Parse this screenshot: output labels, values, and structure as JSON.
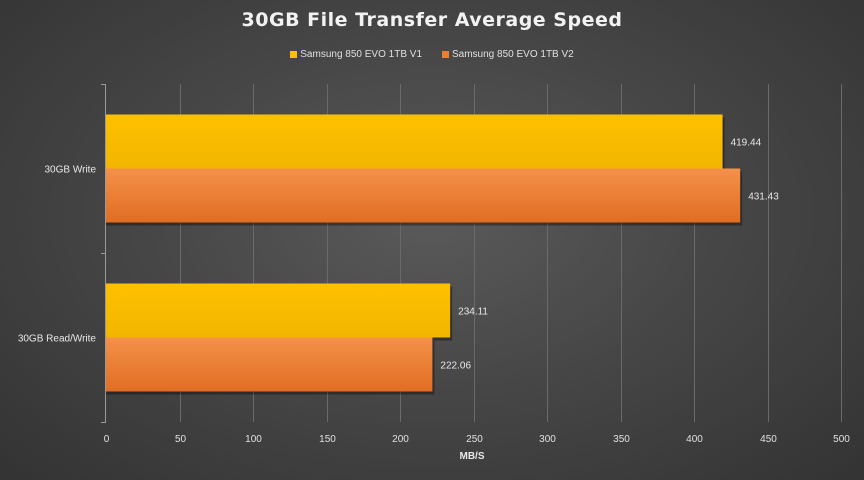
{
  "chart_data": {
    "type": "bar",
    "orientation": "horizontal",
    "title": "30GB File Transfer  Average Speed",
    "xlabel": "MB/S",
    "ylabel": "",
    "categories": [
      "30GB Write",
      "30GB Read/Write"
    ],
    "series": [
      {
        "name": "Samsung 850 EVO 1TB V1",
        "values": [
          419.44,
          234.11
        ],
        "color": "#ffc000"
      },
      {
        "name": "Samsung 850 EVO 1TB V2",
        "values": [
          431.43,
          222.06
        ],
        "color": "#ed7d31"
      }
    ],
    "data_labels": [
      [
        "419.44",
        "234.11"
      ],
      [
        "431.43",
        "222.06"
      ]
    ],
    "xlim": [
      0,
      500
    ],
    "x_ticks": [
      "0",
      "50",
      "100",
      "150",
      "200",
      "250",
      "300",
      "350",
      "400",
      "450",
      "500"
    ],
    "grid": true,
    "legend_position": "top"
  }
}
